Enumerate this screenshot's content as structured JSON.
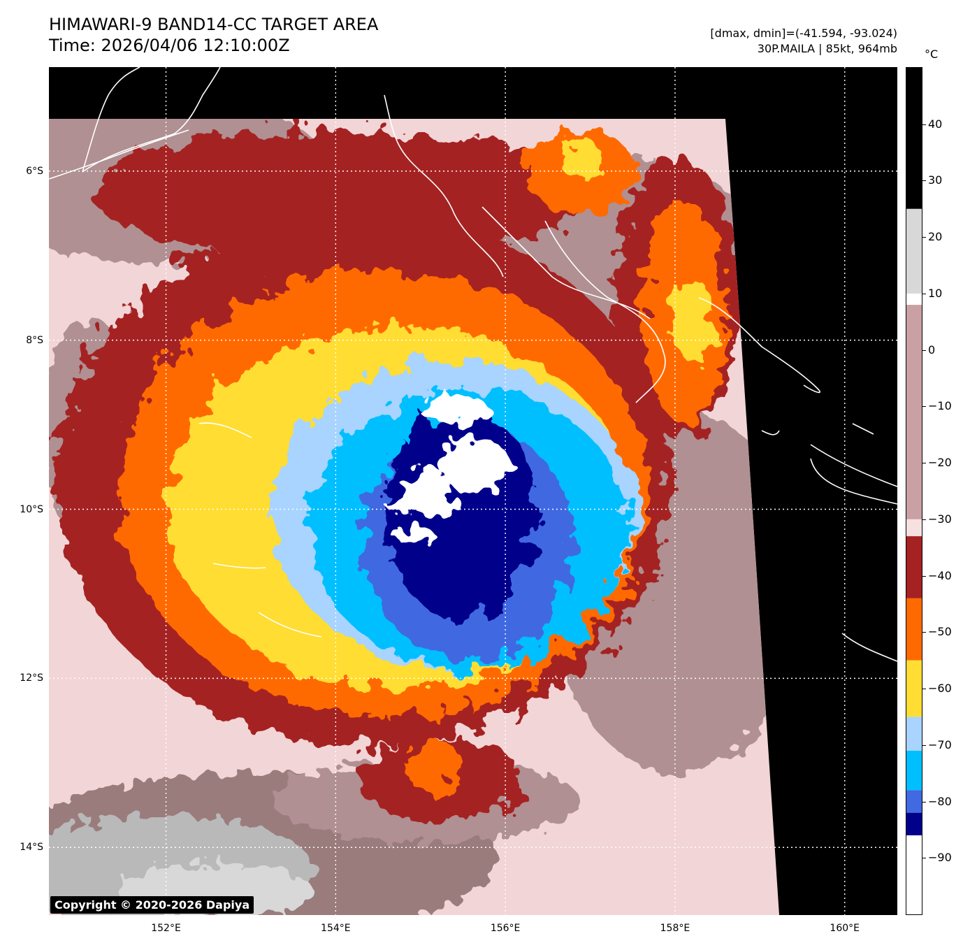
{
  "title": {
    "line1": "HIMAWARI-9 BAND14-CC TARGET AREA",
    "line2": "Time: 2026/04/06 12:10:00Z"
  },
  "info": {
    "dmax_dmin": "[dmax, dmin]=(-41.594, -93.024)",
    "storm": "30P.MAILA | 85kt, 964mb"
  },
  "copyright": "Copyright © 2020-2026 Dapiya",
  "axes": {
    "lat_labels": [
      "6°S",
      "8°S",
      "10°S",
      "12°S",
      "14°S"
    ],
    "lon_labels": [
      "152°E",
      "154°E",
      "156°E",
      "158°E",
      "160°E"
    ],
    "lat_values": [
      -6,
      -8,
      -10,
      -12,
      -14
    ],
    "lon_values": [
      152,
      154,
      156,
      158,
      160
    ],
    "lat_range": [
      -14.8,
      -4.77
    ],
    "lon_range": [
      150.62,
      160.62
    ],
    "grid": "dotted"
  },
  "colorbar": {
    "unit": "°C",
    "ticks": [
      "40",
      "30",
      "20",
      "10",
      "0",
      "−10",
      "−20",
      "−30",
      "−40",
      "−50",
      "−60",
      "−70",
      "−80",
      "−90"
    ],
    "tick_values": [
      40,
      30,
      20,
      10,
      0,
      -10,
      -20,
      -30,
      -40,
      -50,
      -60,
      -70,
      -80,
      -90
    ],
    "range": [
      -100,
      50
    ],
    "bands": [
      {
        "from": 50,
        "to": 25,
        "color": "#000000"
      },
      {
        "from": 25,
        "to": 10,
        "color": "#d8d8d8"
      },
      {
        "from": 10,
        "to": 8,
        "color": "#ffffff"
      },
      {
        "from": 8,
        "to": -30,
        "color": "#c9a0a3"
      },
      {
        "from": -30,
        "to": -33,
        "color": "#f7e0e0"
      },
      {
        "from": -33,
        "to": -44,
        "color": "#a52222"
      },
      {
        "from": -44,
        "to": -55,
        "color": "#ff6a00"
      },
      {
        "from": -55,
        "to": -65,
        "color": "#ffdd33"
      },
      {
        "from": -65,
        "to": -71,
        "color": "#a8d4ff"
      },
      {
        "from": -71,
        "to": -78,
        "color": "#00bfff"
      },
      {
        "from": -78,
        "to": -82,
        "color": "#4169e1"
      },
      {
        "from": -82,
        "to": -86,
        "color": "#00008b"
      },
      {
        "from": -86,
        "to": -100,
        "color": "#ffffff"
      }
    ]
  },
  "colors": {
    "background": "#000000",
    "warm": "#9a7b7d",
    "warm_light": "#f2d5d6",
    "gray_cloud": "#b9b9b9",
    "dark_red": "#a52222",
    "orange": "#ff6a00",
    "yellow": "#ffdd33",
    "light_blue": "#a8d4ff",
    "cyan": "#00bfff",
    "royal_blue": "#4169e1",
    "navy": "#00008b",
    "white": "#ffffff"
  },
  "icons": [
    "coastline-outline"
  ]
}
